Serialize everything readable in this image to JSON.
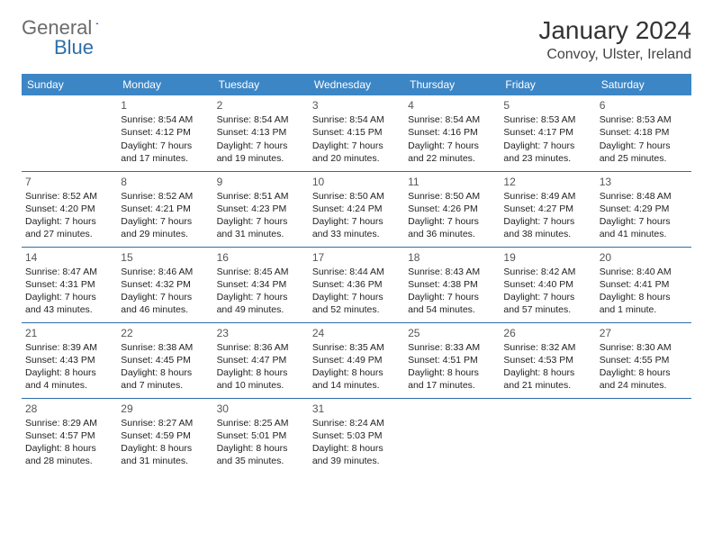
{
  "logo": {
    "text1": "General",
    "text2": "Blue"
  },
  "title": "January 2024",
  "location": "Convoy, Ulster, Ireland",
  "header_bg": "#3d86c6",
  "header_text": "#ffffff",
  "sep_color": "#2f6fa8",
  "daynum_color": "#555555",
  "body_text": "#222222",
  "weekdays": [
    "Sunday",
    "Monday",
    "Tuesday",
    "Wednesday",
    "Thursday",
    "Friday",
    "Saturday"
  ],
  "weeks": [
    [
      null,
      {
        "n": "1",
        "sr": "8:54 AM",
        "ss": "4:12 PM",
        "dl": "7 hours and 17 minutes."
      },
      {
        "n": "2",
        "sr": "8:54 AM",
        "ss": "4:13 PM",
        "dl": "7 hours and 19 minutes."
      },
      {
        "n": "3",
        "sr": "8:54 AM",
        "ss": "4:15 PM",
        "dl": "7 hours and 20 minutes."
      },
      {
        "n": "4",
        "sr": "8:54 AM",
        "ss": "4:16 PM",
        "dl": "7 hours and 22 minutes."
      },
      {
        "n": "5",
        "sr": "8:53 AM",
        "ss": "4:17 PM",
        "dl": "7 hours and 23 minutes."
      },
      {
        "n": "6",
        "sr": "8:53 AM",
        "ss": "4:18 PM",
        "dl": "7 hours and 25 minutes."
      }
    ],
    [
      {
        "n": "7",
        "sr": "8:52 AM",
        "ss": "4:20 PM",
        "dl": "7 hours and 27 minutes."
      },
      {
        "n": "8",
        "sr": "8:52 AM",
        "ss": "4:21 PM",
        "dl": "7 hours and 29 minutes."
      },
      {
        "n": "9",
        "sr": "8:51 AM",
        "ss": "4:23 PM",
        "dl": "7 hours and 31 minutes."
      },
      {
        "n": "10",
        "sr": "8:50 AM",
        "ss": "4:24 PM",
        "dl": "7 hours and 33 minutes."
      },
      {
        "n": "11",
        "sr": "8:50 AM",
        "ss": "4:26 PM",
        "dl": "7 hours and 36 minutes."
      },
      {
        "n": "12",
        "sr": "8:49 AM",
        "ss": "4:27 PM",
        "dl": "7 hours and 38 minutes."
      },
      {
        "n": "13",
        "sr": "8:48 AM",
        "ss": "4:29 PM",
        "dl": "7 hours and 41 minutes."
      }
    ],
    [
      {
        "n": "14",
        "sr": "8:47 AM",
        "ss": "4:31 PM",
        "dl": "7 hours and 43 minutes."
      },
      {
        "n": "15",
        "sr": "8:46 AM",
        "ss": "4:32 PM",
        "dl": "7 hours and 46 minutes."
      },
      {
        "n": "16",
        "sr": "8:45 AM",
        "ss": "4:34 PM",
        "dl": "7 hours and 49 minutes."
      },
      {
        "n": "17",
        "sr": "8:44 AM",
        "ss": "4:36 PM",
        "dl": "7 hours and 52 minutes."
      },
      {
        "n": "18",
        "sr": "8:43 AM",
        "ss": "4:38 PM",
        "dl": "7 hours and 54 minutes."
      },
      {
        "n": "19",
        "sr": "8:42 AM",
        "ss": "4:40 PM",
        "dl": "7 hours and 57 minutes."
      },
      {
        "n": "20",
        "sr": "8:40 AM",
        "ss": "4:41 PM",
        "dl": "8 hours and 1 minute."
      }
    ],
    [
      {
        "n": "21",
        "sr": "8:39 AM",
        "ss": "4:43 PM",
        "dl": "8 hours and 4 minutes."
      },
      {
        "n": "22",
        "sr": "8:38 AM",
        "ss": "4:45 PM",
        "dl": "8 hours and 7 minutes."
      },
      {
        "n": "23",
        "sr": "8:36 AM",
        "ss": "4:47 PM",
        "dl": "8 hours and 10 minutes."
      },
      {
        "n": "24",
        "sr": "8:35 AM",
        "ss": "4:49 PM",
        "dl": "8 hours and 14 minutes."
      },
      {
        "n": "25",
        "sr": "8:33 AM",
        "ss": "4:51 PM",
        "dl": "8 hours and 17 minutes."
      },
      {
        "n": "26",
        "sr": "8:32 AM",
        "ss": "4:53 PM",
        "dl": "8 hours and 21 minutes."
      },
      {
        "n": "27",
        "sr": "8:30 AM",
        "ss": "4:55 PM",
        "dl": "8 hours and 24 minutes."
      }
    ],
    [
      {
        "n": "28",
        "sr": "8:29 AM",
        "ss": "4:57 PM",
        "dl": "8 hours and 28 minutes."
      },
      {
        "n": "29",
        "sr": "8:27 AM",
        "ss": "4:59 PM",
        "dl": "8 hours and 31 minutes."
      },
      {
        "n": "30",
        "sr": "8:25 AM",
        "ss": "5:01 PM",
        "dl": "8 hours and 35 minutes."
      },
      {
        "n": "31",
        "sr": "8:24 AM",
        "ss": "5:03 PM",
        "dl": "8 hours and 39 minutes."
      },
      null,
      null,
      null
    ]
  ],
  "labels": {
    "sunrise": "Sunrise:",
    "sunset": "Sunset:",
    "daylight": "Daylight:"
  }
}
